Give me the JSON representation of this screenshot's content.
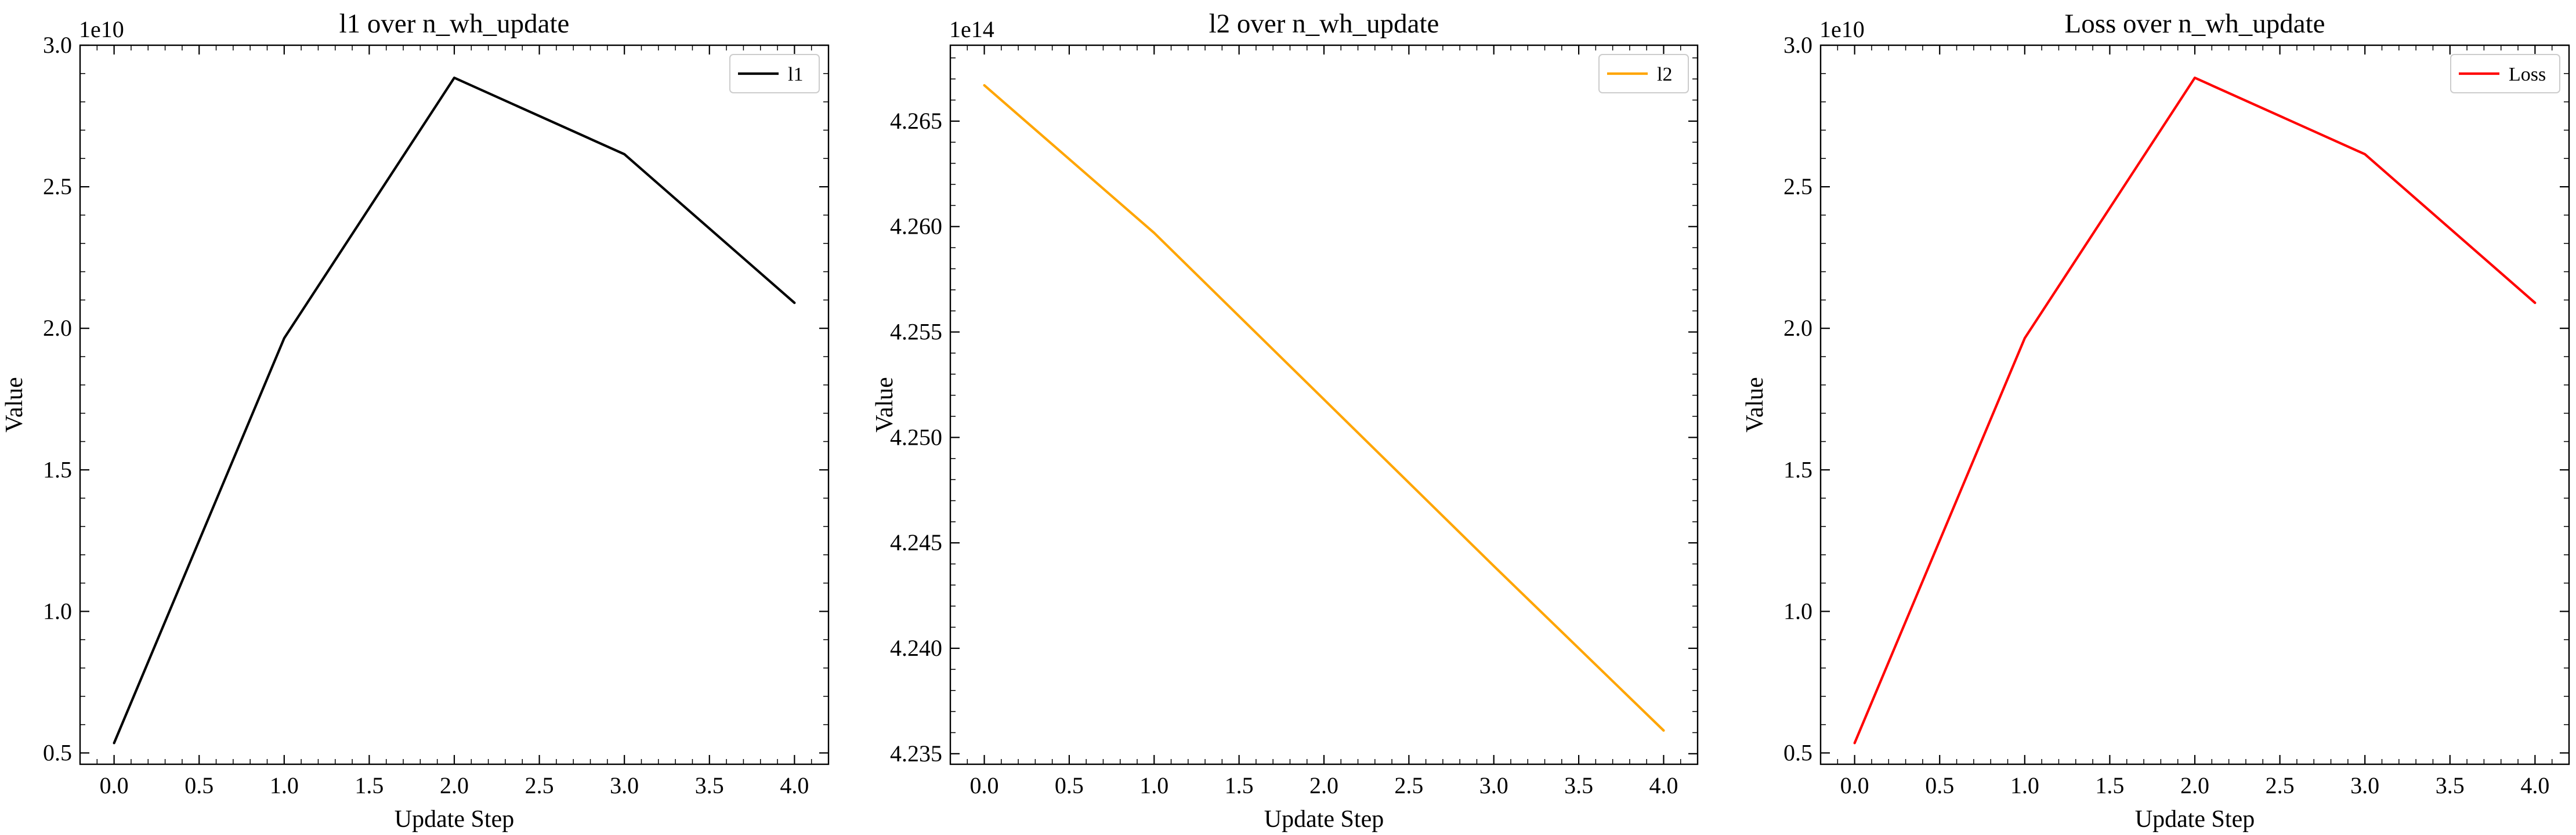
{
  "chart_data": [
    {
      "type": "line",
      "title": "l1 over n_wh_update",
      "xlabel": "Update Step",
      "ylabel": "Value",
      "y_offset_label": "1e10",
      "x": [
        0,
        1,
        2,
        3,
        4
      ],
      "series": [
        {
          "name": "l1",
          "color": "#000000",
          "values": [
            5350000000.0,
            19650000000.0,
            28850000000.0,
            26150000000.0,
            20900000000.0
          ]
        }
      ],
      "xlim": [
        -0.2,
        4.2
      ],
      "ylim": [
        4600000000.0,
        30000000000.0
      ],
      "xticks": [
        0.0,
        0.5,
        1.0,
        1.5,
        2.0,
        2.5,
        3.0,
        3.5,
        4.0
      ],
      "xtick_labels": [
        "0.0",
        "0.5",
        "1.0",
        "1.5",
        "2.0",
        "2.5",
        "3.0",
        "3.5",
        "4.0"
      ],
      "yticks": [
        5000000000.0,
        10000000000.0,
        15000000000.0,
        20000000000.0,
        25000000000.0,
        30000000000.0
      ],
      "ytick_labels": [
        "0.5",
        "1.0",
        "1.5",
        "2.0",
        "2.5",
        "3.0"
      ],
      "legend": "top-right",
      "grid": false
    },
    {
      "type": "line",
      "title": "l2 over n_wh_update",
      "xlabel": "Update Step",
      "ylabel": "Value",
      "y_offset_label": "1e14",
      "x": [
        0,
        1,
        2,
        3,
        4
      ],
      "series": [
        {
          "name": "l2",
          "color": "#ffa500",
          "values": [
            426670000000000.0,
            425970000000000.0,
            425180000000000.0,
            424390000000000.0,
            423610000000000.0
          ]
        }
      ],
      "xlim": [
        -0.2,
        4.2
      ],
      "ylim": [
        423450000000000.0,
        426860000000000.0
      ],
      "xticks": [
        0.0,
        0.5,
        1.0,
        1.5,
        2.0,
        2.5,
        3.0,
        3.5,
        4.0
      ],
      "xtick_labels": [
        "0.0",
        "0.5",
        "1.0",
        "1.5",
        "2.0",
        "2.5",
        "3.0",
        "3.5",
        "4.0"
      ],
      "yticks": [
        423500000000000.0,
        424000000000000.0,
        424500000000000.0,
        425000000000000.0,
        425500000000000.0,
        426000000000000.0,
        426500000000000.0
      ],
      "ytick_labels": [
        "4.235",
        "4.240",
        "4.245",
        "4.250",
        "4.255",
        "4.260",
        "4.265"
      ],
      "legend": "top-right",
      "grid": false
    },
    {
      "type": "line",
      "title": "Loss over n_wh_update",
      "xlabel": "Update Step",
      "ylabel": "Value",
      "y_offset_label": "1e10",
      "x": [
        0,
        1,
        2,
        3,
        4
      ],
      "series": [
        {
          "name": "Loss",
          "color": "#ff0000",
          "values": [
            5350000000.0,
            19650000000.0,
            28850000000.0,
            26150000000.0,
            20900000000.0
          ]
        }
      ],
      "xlim": [
        -0.2,
        4.2
      ],
      "ylim": [
        4600000000.0,
        30000000000.0
      ],
      "xticks": [
        0.0,
        0.5,
        1.0,
        1.5,
        2.0,
        2.5,
        3.0,
        3.5,
        4.0
      ],
      "xtick_labels": [
        "0.0",
        "0.5",
        "1.0",
        "1.5",
        "2.0",
        "2.5",
        "3.0",
        "3.5",
        "4.0"
      ],
      "yticks": [
        5000000000.0,
        10000000000.0,
        15000000000.0,
        20000000000.0,
        25000000000.0,
        30000000000.0
      ],
      "ytick_labels": [
        "0.5",
        "1.0",
        "1.5",
        "2.0",
        "2.5",
        "3.0"
      ],
      "legend": "top-right",
      "grid": false
    }
  ]
}
